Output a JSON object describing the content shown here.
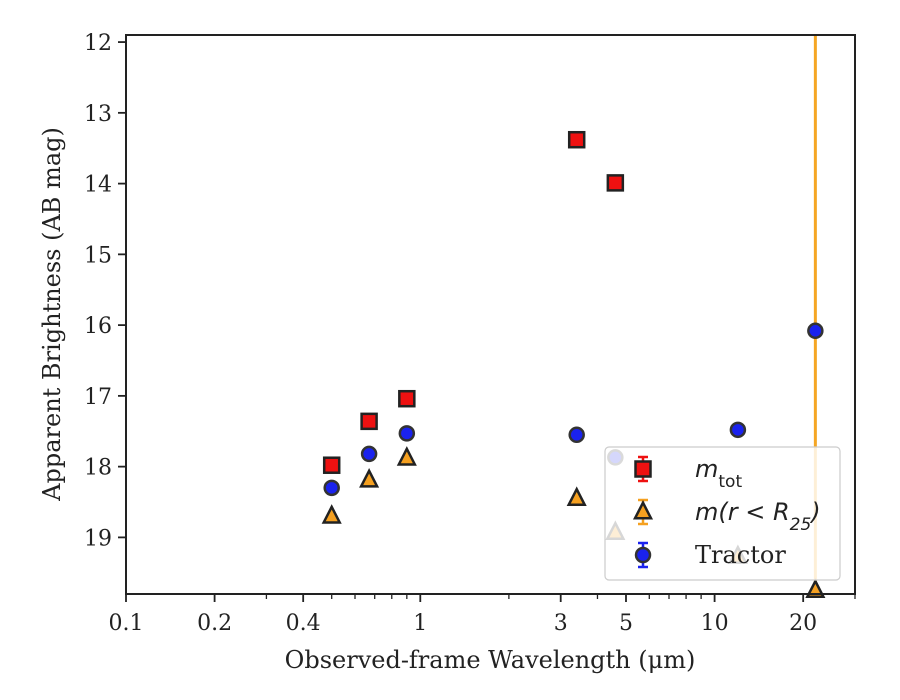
{
  "chart_data": {
    "type": "scatter",
    "xscale": "log",
    "xlim": [
      0.1,
      30
    ],
    "ylim": [
      19.8,
      11.9
    ],
    "y_inverted": true,
    "xlabel": "Observed-frame Wavelength (μm)",
    "ylabel": "Apparent Brightness (AB mag)",
    "x_ticks": [
      {
        "value": 0.1,
        "label": "0.1"
      },
      {
        "value": 0.2,
        "label": "0.2"
      },
      {
        "value": 0.4,
        "label": "0.4"
      },
      {
        "value": 1,
        "label": "1"
      },
      {
        "value": 3,
        "label": "3"
      },
      {
        "value": 5,
        "label": "5"
      },
      {
        "value": 10,
        "label": "10"
      },
      {
        "value": 20,
        "label": "20"
      }
    ],
    "y_ticks": [
      {
        "value": 12,
        "label": "12"
      },
      {
        "value": 13,
        "label": "13"
      },
      {
        "value": 14,
        "label": "14"
      },
      {
        "value": 15,
        "label": "15"
      },
      {
        "value": 16,
        "label": "16"
      },
      {
        "value": 17,
        "label": "17"
      },
      {
        "value": 18,
        "label": "18"
      },
      {
        "value": 19,
        "label": "19"
      }
    ],
    "vertical_line": {
      "x": 22,
      "color": "#f5a623"
    },
    "series": [
      {
        "name": "m_tot",
        "marker": "square",
        "color": "#ee1111",
        "points": [
          {
            "x": 0.5,
            "y": 17.98
          },
          {
            "x": 0.67,
            "y": 17.36
          },
          {
            "x": 0.9,
            "y": 17.04
          },
          {
            "x": 3.4,
            "y": 13.38
          },
          {
            "x": 4.6,
            "y": 13.99
          }
        ]
      },
      {
        "name": "m(r < R25)",
        "marker": "triangle",
        "color": "#f5a020",
        "points": [
          {
            "x": 0.5,
            "y": 18.7
          },
          {
            "x": 0.67,
            "y": 18.19
          },
          {
            "x": 0.9,
            "y": 17.88
          },
          {
            "x": 3.4,
            "y": 18.45
          },
          {
            "x": 4.6,
            "y": 18.93
          },
          {
            "x": 12.0,
            "y": 19.27
          },
          {
            "x": 22.0,
            "y": 19.75
          }
        ]
      },
      {
        "name": "Tractor",
        "marker": "circle",
        "color": "#1a22ee",
        "points": [
          {
            "x": 0.5,
            "y": 18.3
          },
          {
            "x": 0.67,
            "y": 17.82
          },
          {
            "x": 0.9,
            "y": 17.53
          },
          {
            "x": 3.4,
            "y": 17.55
          },
          {
            "x": 4.6,
            "y": 17.87
          },
          {
            "x": 12.0,
            "y": 17.48
          },
          {
            "x": 22.0,
            "y": 16.08
          }
        ]
      }
    ],
    "legend": {
      "position": "lower-right",
      "entries": [
        {
          "marker": "square",
          "color": "#ee1111",
          "label_base": "m",
          "label_sub": "tot"
        },
        {
          "marker": "triangle",
          "color": "#f5a020",
          "label_pre": "m(r < R",
          "label_sub": "25",
          "label_post": ")"
        },
        {
          "marker": "circle",
          "color": "#1a22ee",
          "label": "Tractor"
        }
      ]
    }
  }
}
